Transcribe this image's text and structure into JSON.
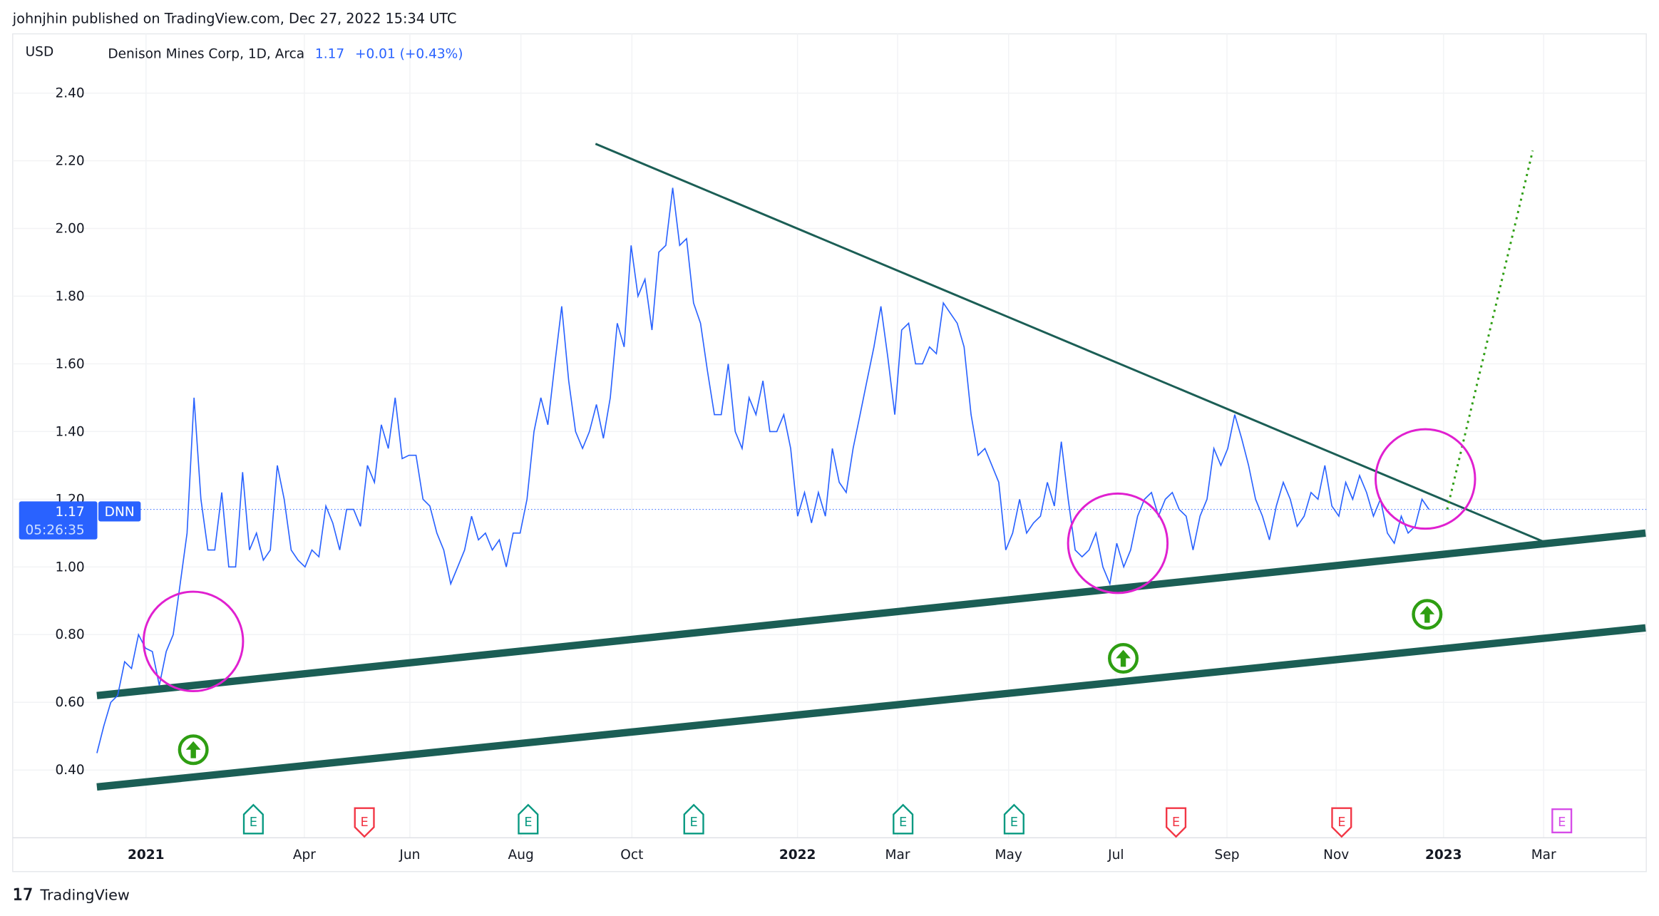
{
  "header": {
    "published": "johnjhin published on TradingView.com, Dec 27, 2022 15:34 UTC"
  },
  "legend": {
    "currency": "USD",
    "symbol_desc": "Denison Mines Corp, 1D, Arca",
    "last": "1.17",
    "change": "+0.01 (+0.43%)"
  },
  "price_label": {
    "price": "1.17",
    "countdown": "05:26:35",
    "ticker": "DNN"
  },
  "footer": {
    "brand": "TradingView"
  },
  "colors": {
    "price_line": "#2962ff",
    "trend": "#1b5e55",
    "circle": "#e020d0",
    "arrow": "#2e9e12",
    "earn_green": "#089981",
    "earn_red": "#f23645",
    "earn_future": "#d64ce8"
  },
  "chart_data": {
    "type": "line",
    "title": "Denison Mines Corp, 1D, Arca",
    "ylabel": "USD",
    "ylim": [
      0.35,
      2.45
    ],
    "y_ticks": [
      "2.40",
      "2.20",
      "2.00",
      "1.80",
      "1.60",
      "1.40",
      "1.20",
      "1.00",
      "0.80",
      "0.60",
      "0.40"
    ],
    "x_ticks": [
      {
        "label": "2021",
        "day": 0,
        "bold": true
      },
      {
        "label": "Apr",
        "day": 87
      },
      {
        "label": "Jun",
        "day": 145
      },
      {
        "label": "Aug",
        "day": 206
      },
      {
        "label": "Oct",
        "day": 267
      },
      {
        "label": "2022",
        "day": 358,
        "bold": true
      },
      {
        "label": "Mar",
        "day": 413
      },
      {
        "label": "May",
        "day": 474
      },
      {
        "label": "Jul",
        "day": 533
      },
      {
        "label": "Sep",
        "day": 594
      },
      {
        "label": "Nov",
        "day": 654
      },
      {
        "label": "2023",
        "day": 713,
        "bold": true
      },
      {
        "label": "Mar",
        "day": 768
      }
    ],
    "series_start_day": -27,
    "series_end_day": 705,
    "series": [
      {
        "name": "DNN close",
        "values": [
          0.45,
          0.53,
          0.6,
          0.62,
          0.72,
          0.7,
          0.8,
          0.76,
          0.75,
          0.65,
          0.75,
          0.8,
          0.95,
          1.1,
          1.5,
          1.2,
          1.05,
          1.05,
          1.22,
          1.0,
          1.0,
          1.28,
          1.05,
          1.1,
          1.02,
          1.05,
          1.3,
          1.2,
          1.05,
          1.02,
          1.0,
          1.05,
          1.03,
          1.18,
          1.13,
          1.05,
          1.17,
          1.17,
          1.12,
          1.3,
          1.25,
          1.42,
          1.35,
          1.5,
          1.32,
          1.33,
          1.33,
          1.2,
          1.18,
          1.1,
          1.05,
          0.95,
          1.0,
          1.05,
          1.15,
          1.08,
          1.1,
          1.05,
          1.08,
          1.0,
          1.1,
          1.1,
          1.2,
          1.4,
          1.5,
          1.42,
          1.6,
          1.77,
          1.55,
          1.4,
          1.35,
          1.4,
          1.48,
          1.38,
          1.5,
          1.72,
          1.65,
          1.95,
          1.8,
          1.85,
          1.7,
          1.93,
          1.95,
          2.12,
          1.95,
          1.97,
          1.78,
          1.72,
          1.58,
          1.45,
          1.45,
          1.6,
          1.4,
          1.35,
          1.5,
          1.45,
          1.55,
          1.4,
          1.4,
          1.45,
          1.35,
          1.15,
          1.22,
          1.13,
          1.22,
          1.15,
          1.35,
          1.25,
          1.22,
          1.35,
          1.45,
          1.55,
          1.65,
          1.77,
          1.62,
          1.45,
          1.7,
          1.72,
          1.6,
          1.6,
          1.65,
          1.63,
          1.78,
          1.75,
          1.72,
          1.65,
          1.45,
          1.33,
          1.35,
          1.3,
          1.25,
          1.05,
          1.1,
          1.2,
          1.1,
          1.13,
          1.15,
          1.25,
          1.18,
          1.37,
          1.2,
          1.05,
          1.03,
          1.05,
          1.1,
          1.0,
          0.95,
          1.07,
          1.0,
          1.05,
          1.15,
          1.2,
          1.22,
          1.15,
          1.2,
          1.22,
          1.17,
          1.15,
          1.05,
          1.15,
          1.2,
          1.35,
          1.3,
          1.35,
          1.45,
          1.38,
          1.3,
          1.2,
          1.15,
          1.08,
          1.18,
          1.25,
          1.2,
          1.12,
          1.15,
          1.22,
          1.2,
          1.3,
          1.18,
          1.15,
          1.25,
          1.2,
          1.27,
          1.22,
          1.15,
          1.2,
          1.1,
          1.07,
          1.15,
          1.1,
          1.12,
          1.2,
          1.17
        ]
      }
    ],
    "trendlines": [
      {
        "name": "descending-resistance",
        "from": [
          247,
          2.25
        ],
        "to": [
          770,
          1.07
        ],
        "style": "thin"
      },
      {
        "name": "upper-channel-support",
        "from": [
          -27,
          0.62
        ],
        "to": [
          824,
          1.1
        ],
        "style": "thick"
      },
      {
        "name": "lower-channel-support",
        "from": [
          -27,
          0.35
        ],
        "to": [
          824,
          0.82
        ],
        "style": "thick"
      },
      {
        "name": "projection",
        "from": [
          715,
          1.17
        ],
        "to": [
          762,
          2.23
        ],
        "style": "dotted"
      }
    ],
    "circles": [
      {
        "day": 26,
        "price": 0.78
      },
      {
        "day": 534,
        "price": 1.07
      },
      {
        "day": 703,
        "price": 1.26
      }
    ],
    "up_arrows": [
      {
        "day": 26,
        "price": 0.46
      },
      {
        "day": 537,
        "price": 0.73
      },
      {
        "day": 704,
        "price": 0.86
      }
    ],
    "earnings": [
      {
        "day": 59,
        "label": "E",
        "kind": "beat"
      },
      {
        "day": 120,
        "label": "E",
        "kind": "miss"
      },
      {
        "day": 210,
        "label": "E",
        "kind": "beat"
      },
      {
        "day": 301,
        "label": "E",
        "kind": "beat"
      },
      {
        "day": 416,
        "label": "E",
        "kind": "beat"
      },
      {
        "day": 477,
        "label": "E",
        "kind": "beat"
      },
      {
        "day": 566,
        "label": "E",
        "kind": "miss"
      },
      {
        "day": 657,
        "label": "E",
        "kind": "miss"
      },
      {
        "day": 778,
        "label": "E",
        "kind": "future"
      }
    ]
  }
}
